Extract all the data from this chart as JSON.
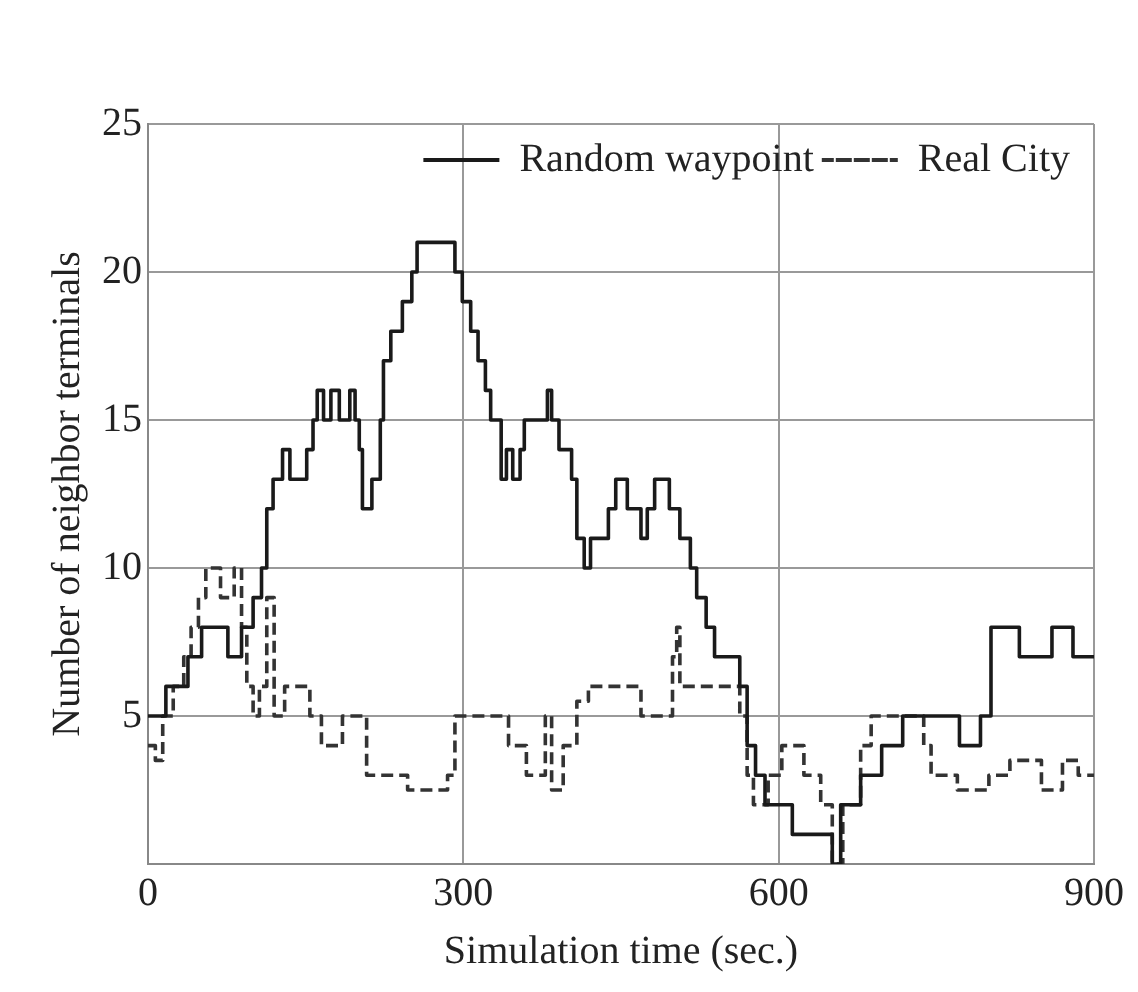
{
  "chart_data": {
    "type": "step",
    "xlabel": "Simulation time (sec.)",
    "ylabel": "Number of neighbor terminals",
    "xlim": [
      0,
      900
    ],
    "xticks": [
      0,
      300,
      600,
      900
    ],
    "ylim": [
      0,
      25
    ],
    "yticks": [
      {
        "value": 0,
        "label": null
      },
      5,
      10,
      15,
      20,
      25
    ],
    "grid": true,
    "legend": "top right",
    "series": [
      {
        "name": "Random waypoint",
        "color": "#1a1a1a",
        "line_style": "solid",
        "x": [
          0,
          17,
          38,
          51,
          76,
          89,
          100,
          108,
          113,
          119,
          128,
          135,
          151,
          157,
          161,
          167,
          174,
          182,
          192,
          197,
          201,
          204,
          213,
          221,
          224,
          231,
          242,
          251,
          256,
          292,
          299,
          307,
          314,
          321,
          326,
          336,
          341,
          347,
          354,
          358,
          380,
          384,
          391,
          403,
          408,
          411,
          415,
          421,
          438,
          445,
          456,
          469,
          475,
          482,
          496,
          506,
          516,
          522,
          531,
          539,
          563,
          570,
          578,
          587,
          613,
          651,
          659,
          678,
          698,
          718,
          772,
          792,
          802,
          829,
          860,
          880,
          900
        ],
        "values": [
          5,
          6,
          7,
          8,
          7,
          8,
          9,
          10,
          12,
          13,
          14,
          13,
          14,
          15,
          16,
          15,
          16,
          15,
          16,
          15,
          14,
          12,
          13,
          15,
          17,
          18,
          19,
          20,
          21,
          20,
          19,
          18,
          17,
          16,
          15,
          13,
          14,
          13,
          14,
          15,
          16,
          15,
          14,
          13,
          11,
          11,
          10,
          11,
          12,
          13,
          12,
          11,
          12,
          13,
          12,
          11,
          10,
          9,
          8,
          7,
          6,
          4,
          3,
          2,
          1,
          0,
          2,
          3,
          4,
          5,
          4,
          5,
          8,
          7,
          8,
          7,
          7
        ]
      },
      {
        "name": "Real City",
        "color": "#333333",
        "line_style": "dashed",
        "x": [
          0,
          7,
          14,
          24,
          34,
          41,
          48,
          55,
          69,
          82,
          89,
          94,
          100,
          106,
          113,
          120,
          130,
          154,
          165,
          185,
          208,
          247,
          285,
          292,
          343,
          360,
          378,
          384,
          395,
          408,
          419,
          469,
          499,
          503,
          506,
          563,
          570,
          576,
          590,
          603,
          624,
          640,
          651,
          661,
          678,
          688,
          738,
          745,
          770,
          800,
          820,
          850,
          870,
          885,
          900
        ],
        "values": [
          4,
          3.5,
          5,
          6,
          7,
          8,
          9,
          10,
          9,
          10,
          8,
          6,
          5,
          6,
          9,
          5,
          6,
          5,
          4,
          5,
          3,
          2.5,
          3,
          5,
          4,
          3,
          5,
          2.5,
          4,
          5.5,
          6,
          5,
          7,
          8,
          6,
          5,
          3,
          2,
          3,
          4,
          3,
          2,
          0,
          2,
          4,
          5,
          4,
          3,
          2.5,
          3,
          3.5,
          2.5,
          3.5,
          3,
          3
        ]
      }
    ]
  }
}
